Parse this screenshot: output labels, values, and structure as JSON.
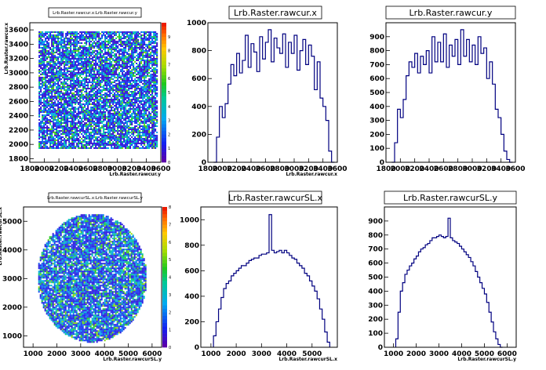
{
  "chart_data": [
    {
      "type": "heatmap",
      "title": "Lrb.Raster.rawcur.x:Lrb.Raster.rawcur.y",
      "xlabel": "Lrb.Raster.rawcur.y",
      "ylabel": "Lrb.Raster.rawcur.x",
      "xlim": [
        1800,
        3600
      ],
      "ylim": [
        1750,
        3700
      ],
      "x_ticks": [
        "1800",
        "2000",
        "2200",
        "2400",
        "2600",
        "2800",
        "3000",
        "3200",
        "3400",
        "3600"
      ],
      "y_ticks": [
        "1800",
        "2000",
        "2200",
        "2400",
        "2600",
        "2800",
        "3000",
        "3200",
        "3400",
        "3600"
      ],
      "z_ticks": [
        "0",
        "1",
        "2",
        "3",
        "4",
        "5",
        "6",
        "7",
        "8",
        "9"
      ],
      "zlim": [
        0,
        10
      ],
      "shape": "rectangle",
      "region_x": [
        1920,
        3550
      ],
      "region_y": [
        1950,
        3580
      ]
    },
    {
      "type": "bar",
      "title": "Lrb.Raster.rawcur.x",
      "xlabel": "Lrb.Raster.rawcur.x",
      "xlim": [
        1800,
        3600
      ],
      "ylim": [
        0,
        1000
      ],
      "x_ticks": [
        "1800",
        "2000",
        "2200",
        "2400",
        "2600",
        "2800",
        "3000",
        "3200",
        "3400",
        "3600"
      ],
      "y_ticks": [
        "0",
        "200",
        "400",
        "600",
        "800",
        "1000"
      ],
      "x": [
        1900,
        1940,
        1980,
        2020,
        2060,
        2100,
        2140,
        2180,
        2220,
        2260,
        2300,
        2340,
        2380,
        2420,
        2460,
        2500,
        2540,
        2580,
        2620,
        2660,
        2700,
        2740,
        2780,
        2820,
        2860,
        2900,
        2940,
        2980,
        3020,
        3060,
        3100,
        3140,
        3180,
        3220,
        3260,
        3300,
        3340,
        3380,
        3420,
        3460,
        3500,
        3540
      ],
      "values": [
        0,
        180,
        400,
        320,
        420,
        560,
        700,
        620,
        780,
        640,
        730,
        910,
        680,
        850,
        790,
        650,
        900,
        740,
        860,
        950,
        720,
        890,
        820,
        780,
        920,
        680,
        860,
        780,
        910,
        660,
        800,
        880,
        700,
        840,
        760,
        520,
        720,
        460,
        400,
        300,
        80,
        0
      ]
    },
    {
      "type": "bar",
      "title": "Lrb.Raster.rawcur.y",
      "xlabel": "",
      "xlim": [
        1800,
        3600
      ],
      "ylim": [
        0,
        1000
      ],
      "x_ticks": [
        "1800",
        "2000",
        "2200",
        "2400",
        "2600",
        "2800",
        "3000",
        "3200",
        "3400",
        "3600"
      ],
      "y_ticks": [
        "0",
        "100",
        "200",
        "300",
        "400",
        "500",
        "600",
        "700",
        "800",
        "900"
      ],
      "x": [
        1900,
        1940,
        1980,
        2020,
        2060,
        2100,
        2140,
        2180,
        2220,
        2260,
        2300,
        2340,
        2380,
        2420,
        2460,
        2500,
        2540,
        2580,
        2620,
        2660,
        2700,
        2740,
        2780,
        2820,
        2860,
        2900,
        2940,
        2980,
        3020,
        3060,
        3100,
        3140,
        3180,
        3220,
        3260,
        3300,
        3340,
        3380,
        3420,
        3460,
        3500,
        3540
      ],
      "values": [
        0,
        140,
        380,
        320,
        450,
        620,
        720,
        680,
        780,
        640,
        760,
        700,
        800,
        640,
        900,
        720,
        860,
        720,
        920,
        680,
        840,
        760,
        880,
        700,
        950,
        760,
        880,
        720,
        840,
        700,
        900,
        780,
        820,
        600,
        720,
        560,
        380,
        320,
        200,
        80,
        20,
        0
      ]
    },
    {
      "type": "heatmap",
      "title": "Lrb.Raster.rawcurSL.x:Lrb.Raster.rawcurSL.y",
      "xlabel": "Lrb.Raster.rawcurSL.y",
      "ylabel": "Lrb.Raster.rawcurSL.x",
      "xlim": [
        600,
        6400
      ],
      "ylim": [
        600,
        5500
      ],
      "x_ticks": [
        "1000",
        "2000",
        "3000",
        "4000",
        "5000",
        "6000"
      ],
      "y_ticks": [
        "1000",
        "2000",
        "3000",
        "4000",
        "5000"
      ],
      "z_ticks": [
        "0",
        "1",
        "2",
        "3",
        "4",
        "5",
        "6",
        "7",
        "8"
      ],
      "zlim": [
        0,
        8
      ],
      "shape": "circle",
      "center": [
        3450,
        3050
      ],
      "radius_x": 2300,
      "radius_y": 2250
    },
    {
      "type": "bar",
      "title": "Lrb.Raster.rawcurSL.x",
      "xlabel": "Lrb.Raster.rawcurSL.x",
      "xlim": [
        600,
        6000
      ],
      "ylim": [
        0,
        1100
      ],
      "x_ticks": [
        "1000",
        "2000",
        "3000",
        "4000",
        "5000"
      ],
      "y_ticks": [
        "0",
        "200",
        "400",
        "600",
        "800",
        "1000"
      ],
      "x": [
        1150,
        1250,
        1350,
        1450,
        1550,
        1650,
        1750,
        1850,
        1950,
        2050,
        2150,
        2250,
        2350,
        2450,
        2550,
        2650,
        2750,
        2850,
        2950,
        3050,
        3150,
        3250,
        3350,
        3450,
        3550,
        3650,
        3750,
        3850,
        3950,
        4050,
        4150,
        4250,
        4350,
        4450,
        4550,
        4650,
        4750,
        4850,
        4950,
        5050,
        5150,
        5250,
        5350,
        5450,
        5550,
        5650
      ],
      "values": [
        90,
        200,
        300,
        390,
        460,
        500,
        520,
        560,
        580,
        600,
        620,
        640,
        640,
        660,
        680,
        690,
        700,
        700,
        720,
        730,
        730,
        740,
        1040,
        760,
        740,
        750,
        760,
        740,
        760,
        740,
        720,
        700,
        690,
        660,
        640,
        620,
        580,
        560,
        520,
        480,
        440,
        380,
        300,
        220,
        120,
        40
      ]
    },
    {
      "type": "bar",
      "title": "Lrb.Raster.rawcurSL.y",
      "xlabel": "Lrb.Raster.rawcurSL.y",
      "xlim": [
        600,
        6400
      ],
      "ylim": [
        0,
        1000
      ],
      "x_ticks": [
        "1000",
        "2000",
        "3000",
        "4000",
        "5000",
        "6000"
      ],
      "y_ticks": [
        "0",
        "100",
        "200",
        "300",
        "400",
        "500",
        "600",
        "700",
        "800",
        "900"
      ],
      "x": [
        1150,
        1250,
        1350,
        1450,
        1550,
        1650,
        1750,
        1850,
        1950,
        2050,
        2150,
        2250,
        2350,
        2450,
        2550,
        2650,
        2750,
        2850,
        2950,
        3050,
        3150,
        3250,
        3350,
        3450,
        3550,
        3650,
        3750,
        3850,
        3950,
        4050,
        4150,
        4250,
        4350,
        4450,
        4550,
        4650,
        4750,
        4850,
        4950,
        5050,
        5150,
        5250,
        5350,
        5450,
        5550,
        5650,
        5750
      ],
      "values": [
        60,
        250,
        400,
        460,
        520,
        550,
        580,
        600,
        630,
        650,
        680,
        700,
        710,
        730,
        740,
        760,
        780,
        780,
        790,
        800,
        790,
        780,
        790,
        920,
        780,
        760,
        750,
        740,
        720,
        700,
        680,
        660,
        640,
        610,
        580,
        540,
        500,
        460,
        420,
        380,
        320,
        250,
        180,
        110,
        60,
        20,
        0
      ]
    }
  ]
}
